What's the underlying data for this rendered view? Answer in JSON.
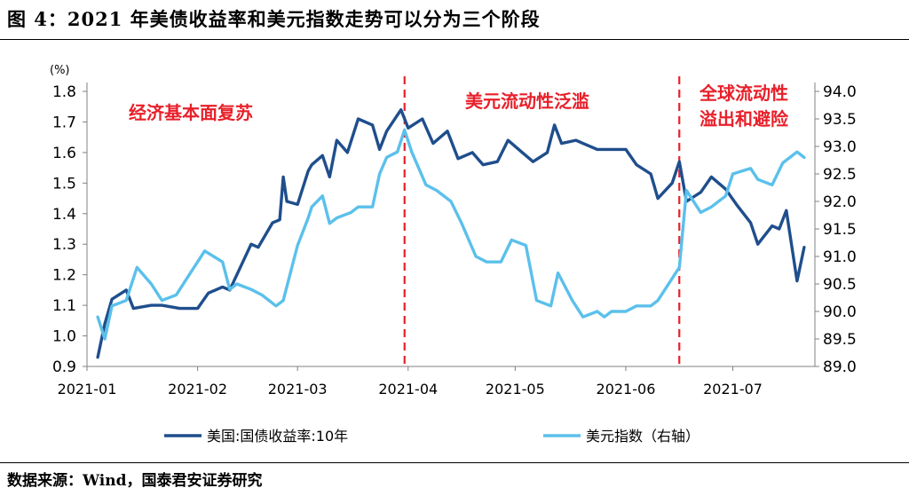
{
  "title": "图 4：2021 年美债收益率和美元指数走势可以分为三个阶段",
  "source": "数据来源：Wind，国泰君安证券研究",
  "chart_data": {
    "type": "line",
    "left_unit": "(%)",
    "left_axis": {
      "min": 0.9,
      "max": 1.8,
      "ticks": [
        "0.9",
        "1.0",
        "1.1",
        "1.2",
        "1.3",
        "1.4",
        "1.5",
        "1.6",
        "1.7",
        "1.8"
      ]
    },
    "right_axis": {
      "min": 89.0,
      "max": 94.0,
      "ticks": [
        "89.0",
        "89.5",
        "90.0",
        "90.5",
        "91.0",
        "91.5",
        "92.0",
        "92.5",
        "93.0",
        "93.5",
        "94.0"
      ]
    },
    "x_ticks": [
      "2021-01",
      "2021-02",
      "2021-03",
      "2021-04",
      "2021-05",
      "2021-06",
      "2021-07"
    ],
    "annotations": [
      {
        "text": "经济基本面复苏",
        "lines": [
          "经济基本面复苏"
        ]
      },
      {
        "text": "美元流动性泛滥",
        "lines": [
          "美元流动性泛滥"
        ]
      },
      {
        "text": "全球流动性溢出和避险",
        "lines": [
          "全球流动性",
          "溢出和避险"
        ]
      }
    ],
    "phase_dividers": [
      "2021-03-31",
      "2021-06-16"
    ],
    "colors": {
      "yield": "#1f4e8c",
      "dxy": "#5bc0eb",
      "annotation": "#e8202a"
    },
    "series": [
      {
        "name": "美国:国债收益率:10年",
        "axis": "left",
        "points": [
          [
            "2021-01-04",
            0.93
          ],
          [
            "2021-01-06",
            1.04
          ],
          [
            "2021-01-08",
            1.12
          ],
          [
            "2021-01-12",
            1.15
          ],
          [
            "2021-01-14",
            1.09
          ],
          [
            "2021-01-19",
            1.1
          ],
          [
            "2021-01-22",
            1.1
          ],
          [
            "2021-01-27",
            1.09
          ],
          [
            "2021-02-01",
            1.09
          ],
          [
            "2021-02-04",
            1.14
          ],
          [
            "2021-02-08",
            1.16
          ],
          [
            "2021-02-10",
            1.15
          ],
          [
            "2021-02-12",
            1.2
          ],
          [
            "2021-02-16",
            1.3
          ],
          [
            "2021-02-18",
            1.29
          ],
          [
            "2021-02-22",
            1.37
          ],
          [
            "2021-02-24",
            1.38
          ],
          [
            "2021-02-25",
            1.52
          ],
          [
            "2021-02-26",
            1.44
          ],
          [
            "2021-03-01",
            1.43
          ],
          [
            "2021-03-04",
            1.54
          ],
          [
            "2021-03-05",
            1.56
          ],
          [
            "2021-03-08",
            1.59
          ],
          [
            "2021-03-10",
            1.52
          ],
          [
            "2021-03-12",
            1.64
          ],
          [
            "2021-03-15",
            1.6
          ],
          [
            "2021-03-18",
            1.71
          ],
          [
            "2021-03-22",
            1.69
          ],
          [
            "2021-03-24",
            1.61
          ],
          [
            "2021-03-26",
            1.67
          ],
          [
            "2021-03-30",
            1.74
          ],
          [
            "2021-04-01",
            1.68
          ],
          [
            "2021-04-05",
            1.71
          ],
          [
            "2021-04-08",
            1.63
          ],
          [
            "2021-04-12",
            1.67
          ],
          [
            "2021-04-15",
            1.58
          ],
          [
            "2021-04-19",
            1.6
          ],
          [
            "2021-04-22",
            1.56
          ],
          [
            "2021-04-26",
            1.57
          ],
          [
            "2021-04-29",
            1.64
          ],
          [
            "2021-05-03",
            1.6
          ],
          [
            "2021-05-06",
            1.57
          ],
          [
            "2021-05-10",
            1.6
          ],
          [
            "2021-05-12",
            1.69
          ],
          [
            "2021-05-14",
            1.63
          ],
          [
            "2021-05-18",
            1.64
          ],
          [
            "2021-05-20",
            1.63
          ],
          [
            "2021-05-24",
            1.61
          ],
          [
            "2021-05-27",
            1.61
          ],
          [
            "2021-06-01",
            1.61
          ],
          [
            "2021-06-04",
            1.56
          ],
          [
            "2021-06-08",
            1.53
          ],
          [
            "2021-06-10",
            1.45
          ],
          [
            "2021-06-14",
            1.5
          ],
          [
            "2021-06-16",
            1.57
          ],
          [
            "2021-06-18",
            1.44
          ],
          [
            "2021-06-22",
            1.47
          ],
          [
            "2021-06-25",
            1.52
          ],
          [
            "2021-06-29",
            1.48
          ],
          [
            "2021-07-02",
            1.43
          ],
          [
            "2021-07-06",
            1.37
          ],
          [
            "2021-07-08",
            1.3
          ],
          [
            "2021-07-12",
            1.36
          ],
          [
            "2021-07-14",
            1.35
          ],
          [
            "2021-07-16",
            1.41
          ],
          [
            "2021-07-19",
            1.18
          ],
          [
            "2021-07-21",
            1.29
          ]
        ]
      },
      {
        "name": "美元指数（右轴）",
        "axis": "right",
        "points": [
          [
            "2021-01-04",
            89.9
          ],
          [
            "2021-01-06",
            89.5
          ],
          [
            "2021-01-08",
            90.1
          ],
          [
            "2021-01-12",
            90.2
          ],
          [
            "2021-01-15",
            90.8
          ],
          [
            "2021-01-19",
            90.5
          ],
          [
            "2021-01-22",
            90.2
          ],
          [
            "2021-01-26",
            90.3
          ],
          [
            "2021-01-29",
            90.6
          ],
          [
            "2021-02-03",
            91.1
          ],
          [
            "2021-02-08",
            90.9
          ],
          [
            "2021-02-10",
            90.4
          ],
          [
            "2021-02-12",
            90.5
          ],
          [
            "2021-02-16",
            90.4
          ],
          [
            "2021-02-19",
            90.3
          ],
          [
            "2021-02-23",
            90.1
          ],
          [
            "2021-02-25",
            90.2
          ],
          [
            "2021-03-01",
            91.2
          ],
          [
            "2021-03-04",
            91.7
          ],
          [
            "2021-03-05",
            91.9
          ],
          [
            "2021-03-08",
            92.1
          ],
          [
            "2021-03-10",
            91.6
          ],
          [
            "2021-03-12",
            91.7
          ],
          [
            "2021-03-16",
            91.8
          ],
          [
            "2021-03-18",
            91.9
          ],
          [
            "2021-03-22",
            91.9
          ],
          [
            "2021-03-24",
            92.5
          ],
          [
            "2021-03-26",
            92.8
          ],
          [
            "2021-03-29",
            92.9
          ],
          [
            "2021-03-31",
            93.3
          ],
          [
            "2021-04-02",
            92.9
          ],
          [
            "2021-04-06",
            92.3
          ],
          [
            "2021-04-09",
            92.2
          ],
          [
            "2021-04-13",
            92.0
          ],
          [
            "2021-04-16",
            91.6
          ],
          [
            "2021-04-20",
            91.0
          ],
          [
            "2021-04-23",
            90.9
          ],
          [
            "2021-04-27",
            90.9
          ],
          [
            "2021-04-30",
            91.3
          ],
          [
            "2021-05-04",
            91.2
          ],
          [
            "2021-05-07",
            90.2
          ],
          [
            "2021-05-11",
            90.1
          ],
          [
            "2021-05-13",
            90.7
          ],
          [
            "2021-05-17",
            90.2
          ],
          [
            "2021-05-20",
            89.9
          ],
          [
            "2021-05-24",
            90.0
          ],
          [
            "2021-05-26",
            89.9
          ],
          [
            "2021-05-28",
            90.0
          ],
          [
            "2021-06-01",
            90.0
          ],
          [
            "2021-06-04",
            90.1
          ],
          [
            "2021-06-08",
            90.1
          ],
          [
            "2021-06-10",
            90.2
          ],
          [
            "2021-06-14",
            90.6
          ],
          [
            "2021-06-16",
            90.8
          ],
          [
            "2021-06-18",
            92.2
          ],
          [
            "2021-06-22",
            91.8
          ],
          [
            "2021-06-25",
            91.9
          ],
          [
            "2021-06-29",
            92.1
          ],
          [
            "2021-07-01",
            92.5
          ],
          [
            "2021-07-06",
            92.6
          ],
          [
            "2021-07-08",
            92.4
          ],
          [
            "2021-07-12",
            92.3
          ],
          [
            "2021-07-15",
            92.7
          ],
          [
            "2021-07-19",
            92.9
          ],
          [
            "2021-07-21",
            92.8
          ]
        ]
      }
    ]
  }
}
